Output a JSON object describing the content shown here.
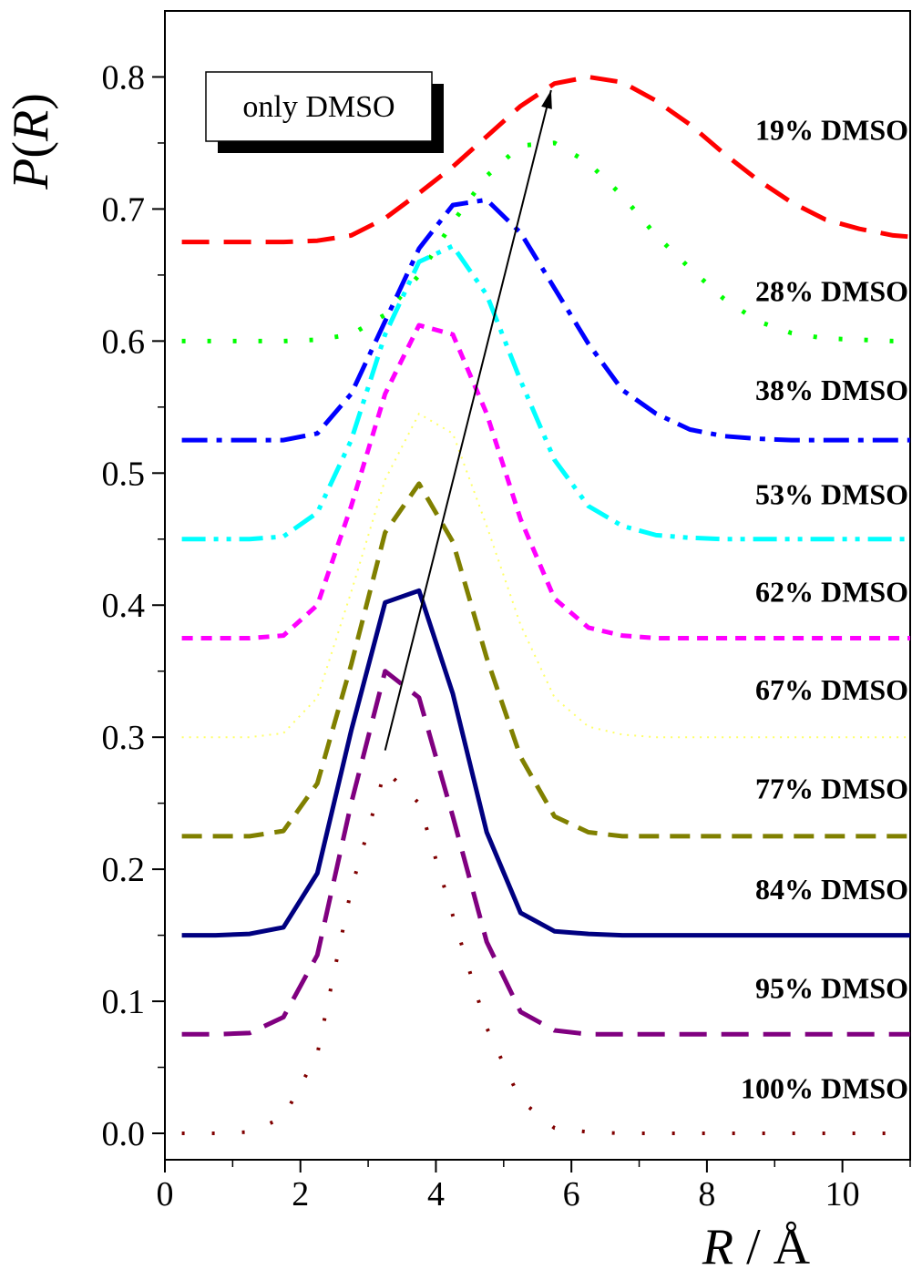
{
  "chart_data": {
    "type": "line",
    "xlabel": "R / Å",
    "ylabel": "P(R)",
    "xlim": [
      0,
      11
    ],
    "ylim": [
      -0.02,
      0.85
    ],
    "xticks": [
      0,
      2,
      4,
      6,
      8,
      10
    ],
    "yticks": [
      0.0,
      0.1,
      0.2,
      0.3,
      0.4,
      0.5,
      0.6,
      0.7,
      0.8
    ],
    "xtick_labels": [
      "0",
      "2",
      "4",
      "6",
      "8",
      "10"
    ],
    "ytick_labels": [
      "0.0",
      "0.1",
      "0.2",
      "0.3",
      "0.4",
      "0.5",
      "0.6",
      "0.7",
      "0.8"
    ],
    "legend_box": "only DMSO",
    "grid": false,
    "series": [
      {
        "name": "19% DMSO",
        "color": "#ff0000",
        "dash": "longdash",
        "x": [
          0.25,
          0.75,
          1.25,
          1.75,
          2.25,
          2.75,
          3.25,
          3.75,
          4.25,
          4.75,
          5.25,
          5.75,
          6.25,
          6.75,
          7.25,
          7.75,
          8.25,
          8.75,
          9.25,
          9.75,
          10.25,
          10.75,
          11.0
        ],
        "values": [
          0.675,
          0.675,
          0.675,
          0.675,
          0.676,
          0.68,
          0.693,
          0.712,
          0.732,
          0.755,
          0.778,
          0.795,
          0.8,
          0.796,
          0.782,
          0.764,
          0.742,
          0.722,
          0.705,
          0.692,
          0.685,
          0.68,
          0.679
        ]
      },
      {
        "name": "28% DMSO",
        "color": "#00ff00",
        "dash": "dot",
        "x": [
          0.25,
          0.75,
          1.25,
          1.75,
          2.25,
          2.75,
          3.25,
          3.75,
          4.25,
          4.75,
          5.25,
          5.75,
          6.25,
          6.75,
          7.25,
          7.75,
          8.25,
          8.75,
          9.25,
          9.75,
          10.25,
          10.75,
          11.0
        ],
        "values": [
          0.6,
          0.6,
          0.6,
          0.6,
          0.601,
          0.605,
          0.62,
          0.65,
          0.69,
          0.725,
          0.748,
          0.75,
          0.735,
          0.71,
          0.68,
          0.655,
          0.632,
          0.615,
          0.606,
          0.602,
          0.601,
          0.6,
          0.6
        ]
      },
      {
        "name": "38% DMSO",
        "color": "#0000ff",
        "dash": "dashdot",
        "x": [
          0.25,
          0.75,
          1.25,
          1.75,
          2.25,
          2.75,
          3.25,
          3.75,
          4.25,
          4.75,
          5.25,
          5.75,
          6.25,
          6.75,
          7.25,
          7.75,
          8.25,
          8.75,
          9.25,
          9.75,
          10.25,
          10.75,
          11.0
        ],
        "values": [
          0.525,
          0.525,
          0.525,
          0.525,
          0.53,
          0.56,
          0.615,
          0.67,
          0.703,
          0.707,
          0.682,
          0.64,
          0.598,
          0.563,
          0.545,
          0.533,
          0.528,
          0.526,
          0.525,
          0.525,
          0.525,
          0.525,
          0.525
        ]
      },
      {
        "name": "53% DMSO",
        "color": "#00ffff",
        "dash": "dashdotdot",
        "x": [
          0.25,
          0.75,
          1.25,
          1.75,
          2.25,
          2.75,
          3.25,
          3.75,
          4.25,
          4.75,
          5.25,
          5.75,
          6.25,
          6.75,
          7.25,
          7.75,
          8.25,
          8.75,
          9.25,
          9.75,
          10.25,
          10.75,
          11.0
        ],
        "values": [
          0.45,
          0.45,
          0.45,
          0.452,
          0.47,
          0.525,
          0.605,
          0.66,
          0.672,
          0.635,
          0.57,
          0.51,
          0.475,
          0.46,
          0.453,
          0.451,
          0.45,
          0.45,
          0.45,
          0.45,
          0.45,
          0.45,
          0.45
        ]
      },
      {
        "name": "62% DMSO",
        "color": "#ff00ff",
        "dash": "shortdash",
        "x": [
          0.25,
          0.75,
          1.25,
          1.75,
          2.25,
          2.75,
          3.25,
          3.75,
          4.25,
          4.75,
          5.25,
          5.75,
          6.25,
          6.75,
          7.25,
          7.75,
          8.25,
          8.75,
          9.25,
          9.75,
          10.25,
          10.75,
          11.0
        ],
        "values": [
          0.375,
          0.375,
          0.375,
          0.377,
          0.4,
          0.475,
          0.56,
          0.612,
          0.605,
          0.545,
          0.465,
          0.405,
          0.383,
          0.377,
          0.375,
          0.375,
          0.375,
          0.375,
          0.375,
          0.375,
          0.375,
          0.375,
          0.375
        ]
      },
      {
        "name": "67% DMSO",
        "color": "#ffff66",
        "dash": "finedot",
        "x": [
          0.25,
          0.75,
          1.25,
          1.75,
          2.25,
          2.75,
          3.25,
          3.75,
          4.25,
          4.75,
          5.25,
          5.75,
          6.25,
          6.75,
          7.25,
          7.75,
          8.25,
          8.75,
          9.25,
          9.75,
          10.25,
          10.75,
          11.0
        ],
        "values": [
          0.3,
          0.3,
          0.3,
          0.303,
          0.33,
          0.41,
          0.495,
          0.545,
          0.53,
          0.46,
          0.385,
          0.33,
          0.308,
          0.302,
          0.3,
          0.3,
          0.3,
          0.3,
          0.3,
          0.3,
          0.3,
          0.3,
          0.3
        ]
      },
      {
        "name": "77% DMSO",
        "color": "#808000",
        "dash": "dash",
        "x": [
          0.25,
          0.75,
          1.25,
          1.75,
          2.25,
          2.75,
          3.25,
          3.75,
          4.25,
          4.75,
          5.25,
          5.75,
          6.25,
          6.75,
          7.25,
          7.75,
          8.25,
          8.75,
          9.25,
          9.75,
          10.25,
          10.75,
          11.0
        ],
        "values": [
          0.225,
          0.225,
          0.225,
          0.229,
          0.265,
          0.355,
          0.455,
          0.492,
          0.448,
          0.36,
          0.285,
          0.24,
          0.228,
          0.225,
          0.225,
          0.225,
          0.225,
          0.225,
          0.225,
          0.225,
          0.225,
          0.225,
          0.225
        ]
      },
      {
        "name": "84% DMSO",
        "color": "#000080",
        "dash": "solid",
        "x": [
          0.25,
          0.75,
          1.25,
          1.75,
          2.25,
          2.75,
          3.25,
          3.75,
          4.25,
          4.75,
          5.25,
          5.75,
          6.25,
          6.75,
          7.25,
          7.75,
          8.25,
          8.75,
          9.25,
          9.75,
          10.25,
          10.75,
          11.0
        ],
        "values": [
          0.15,
          0.15,
          0.151,
          0.156,
          0.197,
          0.305,
          0.402,
          0.411,
          0.333,
          0.228,
          0.167,
          0.153,
          0.151,
          0.15,
          0.15,
          0.15,
          0.15,
          0.15,
          0.15,
          0.15,
          0.15,
          0.15,
          0.15
        ]
      },
      {
        "name": "95% DMSO",
        "color": "#800080",
        "dash": "longdash",
        "x": [
          0.25,
          0.75,
          1.25,
          1.75,
          2.25,
          2.75,
          3.25,
          3.75,
          4.25,
          4.75,
          5.25,
          5.75,
          6.25,
          6.75,
          7.25,
          7.75,
          8.25,
          8.75,
          9.25,
          9.75,
          10.25,
          10.75,
          11.0
        ],
        "values": [
          0.075,
          0.075,
          0.076,
          0.088,
          0.135,
          0.25,
          0.35,
          0.33,
          0.24,
          0.145,
          0.092,
          0.078,
          0.075,
          0.075,
          0.075,
          0.075,
          0.075,
          0.075,
          0.075,
          0.075,
          0.075,
          0.075,
          0.075
        ]
      },
      {
        "name": "100% DMSO",
        "color": "#800000",
        "dash": "sparsedot",
        "x": [
          0.25,
          0.75,
          1.25,
          1.75,
          2.25,
          2.75,
          3.25,
          3.75,
          4.25,
          4.75,
          5.25,
          5.75,
          6.25,
          6.75,
          7.25,
          7.75,
          8.25,
          8.75,
          9.25,
          9.75,
          10.25,
          10.75,
          11.0
        ],
        "values": [
          0.0,
          0.0,
          0.001,
          0.012,
          0.06,
          0.185,
          0.275,
          0.25,
          0.165,
          0.08,
          0.025,
          0.004,
          0.001,
          0.0,
          0.0,
          0.0,
          0.0,
          0.0,
          0.0,
          0.0,
          0.0,
          0.0,
          0.0
        ]
      }
    ],
    "series_labels": [
      {
        "text": "19% DMSO",
        "y": 0.76
      },
      {
        "text": "28% DMSO",
        "y": 0.638
      },
      {
        "text": "38% DMSO",
        "y": 0.563
      },
      {
        "text": "53% DMSO",
        "y": 0.484
      },
      {
        "text": "62% DMSO",
        "y": 0.41
      },
      {
        "text": "67% DMSO",
        "y": 0.336
      },
      {
        "text": "77% DMSO",
        "y": 0.261
      },
      {
        "text": "84% DMSO",
        "y": 0.185
      },
      {
        "text": "95% DMSO",
        "y": 0.11
      },
      {
        "text": "100% DMSO",
        "y": 0.034
      }
    ],
    "annotations": [
      {
        "type": "arrow",
        "from": [
          3.25,
          0.29
        ],
        "to": [
          5.7,
          0.79
        ]
      }
    ]
  }
}
